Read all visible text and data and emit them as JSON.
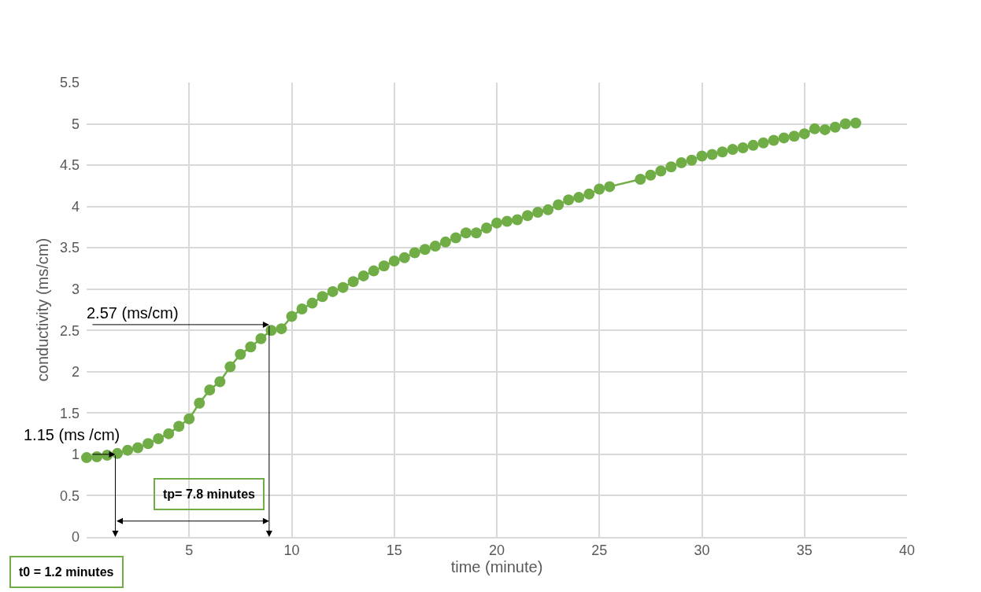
{
  "chart_data": {
    "type": "line",
    "xlabel": "time (minute)",
    "ylabel": "conductivity (ms/cm)",
    "x": [
      0,
      0.5,
      1,
      1.5,
      2,
      2.5,
      3,
      3.5,
      4,
      4.5,
      5,
      5.5,
      6,
      6.5,
      7,
      7.5,
      8,
      8.5,
      9,
      9.5,
      10,
      10.5,
      11,
      11.5,
      12,
      12.5,
      13,
      13.5,
      14,
      14.5,
      15,
      15.5,
      16,
      16.5,
      17,
      17.5,
      18,
      18.5,
      19,
      19.5,
      20,
      20.5,
      21,
      21.5,
      22,
      22.5,
      23,
      23.5,
      24,
      24.5,
      25,
      25.5,
      27,
      27.5,
      28,
      28.5,
      29,
      29.5,
      30,
      30.5,
      31,
      31.5,
      32,
      32.5,
      33,
      33.5,
      34,
      34.5,
      35,
      35.5,
      36,
      36.5,
      37,
      37.5
    ],
    "series": [
      {
        "color": "#70ad47",
        "values": [
          0.96,
          0.97,
          0.99,
          1.01,
          1.05,
          1.08,
          1.13,
          1.19,
          1.25,
          1.34,
          1.43,
          1.62,
          1.78,
          1.88,
          2.06,
          2.21,
          2.3,
          2.4,
          2.5,
          2.52,
          2.67,
          2.76,
          2.83,
          2.91,
          2.97,
          3.02,
          3.09,
          3.16,
          3.22,
          3.28,
          3.34,
          3.38,
          3.44,
          3.48,
          3.52,
          3.57,
          3.62,
          3.68,
          3.68,
          3.74,
          3.8,
          3.82,
          3.84,
          3.89,
          3.93,
          3.96,
          4.02,
          4.08,
          4.11,
          4.15,
          4.21,
          4.24,
          4.33,
          4.38,
          4.43,
          4.48,
          4.53,
          4.56,
          4.61,
          4.63,
          4.66,
          4.69,
          4.71,
          4.74,
          4.77,
          4.8,
          4.83,
          4.85,
          4.88,
          4.94,
          4.93,
          4.96,
          5.0,
          5.01
        ]
      }
    ],
    "xlim": [
      0,
      40
    ],
    "xticks": [
      5,
      10,
      15,
      20,
      25,
      30,
      35,
      40
    ],
    "ylim": [
      0,
      5.5
    ],
    "yticks": [
      0,
      0.5,
      1,
      1.5,
      2,
      2.5,
      3,
      3.5,
      4,
      4.5,
      5,
      5.5
    ],
    "grid": true,
    "marker": "circle",
    "line_style": "solid",
    "annotations": [
      {
        "text": "2.57 (ms/cm)",
        "x": 8.9,
        "y": 2.57
      },
      {
        "text": "1.15 (ms /cm)",
        "x": 1.4,
        "y": 1.0
      },
      "tp= 7.8 minutes",
      "t0 = 1.2 minutes"
    ]
  }
}
